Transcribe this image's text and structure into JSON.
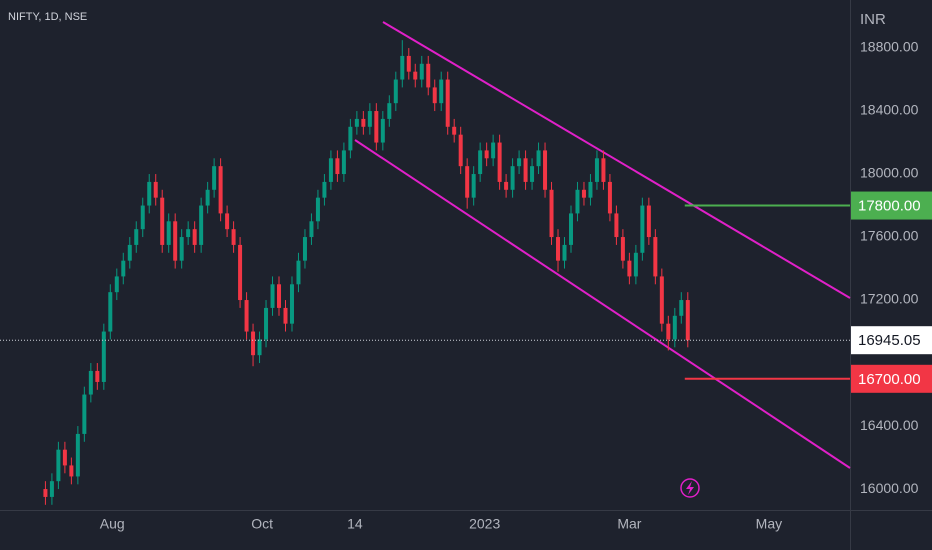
{
  "header": {
    "symbol": "NIFTY, 1D, NSE",
    "currency": "INR"
  },
  "chart_data": {
    "type": "candlestick",
    "open": [
      16000,
      15950,
      16050,
      16250,
      16150,
      16080,
      16350,
      16600,
      16750,
      16680,
      17000,
      17250,
      17350,
      17450,
      17550,
      17650,
      17800,
      17950,
      17850,
      17550,
      17700,
      17450,
      17600,
      17650,
      17550,
      17800,
      17900,
      18050,
      17750,
      17650,
      17550,
      17200,
      17000,
      16850,
      16950,
      17150,
      17300,
      17150,
      17050,
      17300,
      17450,
      17600,
      17700,
      17850,
      17950,
      18100,
      18000,
      18150,
      18300,
      18350,
      18300,
      18400,
      18200,
      18350,
      18450,
      18600,
      18750,
      18650,
      18600,
      18700,
      18550,
      18450,
      18600,
      18300,
      18250,
      18050,
      17850,
      18000,
      18150,
      18100,
      18200,
      17950,
      17900,
      18050,
      18100,
      17950,
      18050,
      18150,
      17900,
      17600,
      17450,
      17550,
      17750,
      17900,
      17850,
      17950,
      18100,
      17950,
      17750,
      17600,
      17450,
      17350,
      17500,
      17800,
      17600,
      17350,
      17050,
      16950,
      17100,
      17200
    ],
    "high": [
      16050,
      16100,
      16300,
      16300,
      16200,
      16400,
      16650,
      16800,
      16800,
      17050,
      17300,
      17400,
      17500,
      17600,
      17700,
      17850,
      18000,
      18000,
      17900,
      17750,
      17750,
      17650,
      17700,
      17700,
      17850,
      17950,
      18100,
      18100,
      17800,
      17700,
      17600,
      17250,
      17050,
      17000,
      17200,
      17350,
      17350,
      17200,
      17350,
      17500,
      17650,
      17750,
      17900,
      18000,
      18150,
      18150,
      18200,
      18350,
      18400,
      18400,
      18450,
      18450,
      18400,
      18500,
      18650,
      18850,
      18800,
      18700,
      18750,
      18750,
      18600,
      18650,
      18650,
      18350,
      18300,
      18100,
      18050,
      18200,
      18200,
      18250,
      18250,
      18000,
      18100,
      18150,
      18150,
      18100,
      18200,
      18200,
      17950,
      17650,
      17600,
      17800,
      17950,
      17950,
      18000,
      18150,
      18150,
      18000,
      17800,
      17650,
      17500,
      17550,
      17850,
      17850,
      17650,
      17400,
      17100,
      17150,
      17250,
      17250
    ],
    "low": [
      15900,
      15900,
      16000,
      16100,
      16030,
      16030,
      16300,
      16550,
      16630,
      16630,
      16950,
      17200,
      17300,
      17400,
      17500,
      17600,
      17750,
      17800,
      17500,
      17500,
      17400,
      17400,
      17550,
      17500,
      17500,
      17750,
      17850,
      17700,
      17600,
      17500,
      17150,
      16950,
      16780,
      16800,
      16900,
      17100,
      17100,
      17000,
      17000,
      17250,
      17400,
      17550,
      17650,
      17800,
      17900,
      17950,
      17950,
      18100,
      18250,
      18250,
      18250,
      18150,
      18150,
      18300,
      18400,
      18550,
      18600,
      18550,
      18550,
      18500,
      18400,
      18400,
      18250,
      18200,
      18000,
      17780,
      17800,
      17950,
      18050,
      18050,
      17900,
      17850,
      17850,
      18000,
      17900,
      17900,
      18000,
      17850,
      17550,
      17380,
      17400,
      17500,
      17700,
      17800,
      17800,
      17900,
      17900,
      17700,
      17550,
      17400,
      17300,
      17300,
      17450,
      17550,
      17300,
      17000,
      16880,
      16900,
      17050,
      16900
    ],
    "close": [
      15950,
      16050,
      16250,
      16150,
      16080,
      16350,
      16600,
      16750,
      16680,
      17000,
      17250,
      17350,
      17450,
      17550,
      17650,
      17800,
      17950,
      17850,
      17550,
      17700,
      17450,
      17600,
      17650,
      17550,
      17800,
      17900,
      18050,
      17750,
      17650,
      17550,
      17200,
      17000,
      16850,
      16950,
      17150,
      17300,
      17150,
      17050,
      17300,
      17450,
      17600,
      17700,
      17850,
      17950,
      18100,
      18000,
      18150,
      18300,
      18350,
      18300,
      18400,
      18200,
      18350,
      18450,
      18600,
      18750,
      18650,
      18600,
      18700,
      18550,
      18450,
      18600,
      18300,
      18250,
      18050,
      17850,
      18000,
      18150,
      18100,
      18200,
      17950,
      17900,
      18050,
      18100,
      17950,
      18050,
      18150,
      17900,
      17600,
      17450,
      17550,
      17750,
      17900,
      17850,
      17950,
      18100,
      17950,
      17750,
      17600,
      17450,
      17350,
      17500,
      17800,
      17600,
      17350,
      17050,
      16950,
      17100,
      17200,
      16945
    ],
    "up_color": "#089981",
    "down_color": "#f23645",
    "xlim": [
      -7,
      124
    ],
    "xticks": [
      {
        "value": 10.3,
        "label": "Aug"
      },
      {
        "value": 33.4,
        "label": "Oct"
      },
      {
        "value": 47.7,
        "label": "14"
      },
      {
        "value": 67.7,
        "label": "2023"
      },
      {
        "value": 90,
        "label": "Mar"
      },
      {
        "value": 111.5,
        "label": "May"
      }
    ],
    "ylim": [
      15867,
      19105
    ],
    "yticks": [
      {
        "value": 16000,
        "label": "16000.00"
      },
      {
        "value": 16400,
        "label": "16400.00"
      },
      {
        "value": 17200,
        "label": "17200.00"
      },
      {
        "value": 17600,
        "label": "17600.00"
      },
      {
        "value": 18000,
        "label": "18000.00"
      },
      {
        "value": 18400,
        "label": "18400.00"
      },
      {
        "value": 18800,
        "label": "18800.00"
      }
    ],
    "levels": [
      {
        "value": 17800,
        "label": "17800.00",
        "color": "#4caf50"
      },
      {
        "value": 16700,
        "label": "16700.00",
        "color": "#f23645"
      }
    ],
    "last_price": {
      "value": 16945.05,
      "label": "16945.05"
    }
  }
}
